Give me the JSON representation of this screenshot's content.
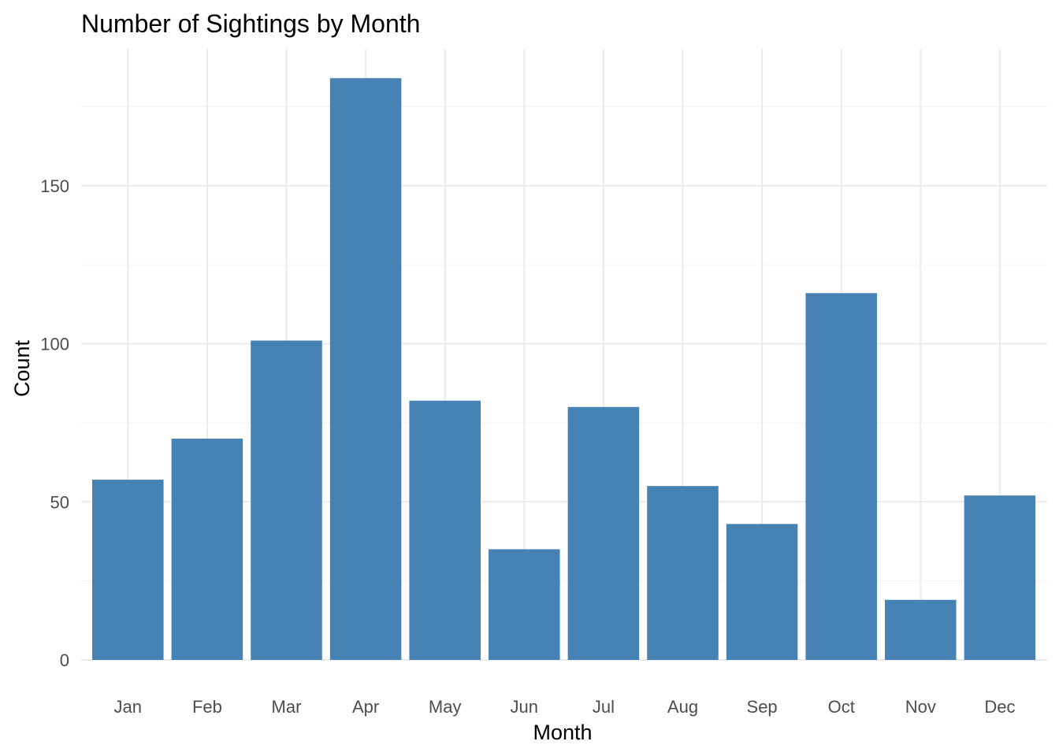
{
  "chart_data": {
    "type": "bar",
    "title": "Number of Sightings by Month",
    "xlabel": "Month",
    "ylabel": "Count",
    "categories": [
      "Jan",
      "Feb",
      "Mar",
      "Apr",
      "May",
      "Jun",
      "Jul",
      "Aug",
      "Sep",
      "Oct",
      "Nov",
      "Dec"
    ],
    "values": [
      57,
      70,
      101,
      184,
      82,
      35,
      80,
      55,
      43,
      116,
      19,
      52
    ],
    "ylim": [
      0,
      193
    ],
    "yticks": [
      0,
      50,
      100,
      150
    ],
    "yticks_minor": [
      25,
      75,
      125,
      175
    ],
    "grid": true,
    "legend": "none",
    "bar_color": "#4682b4"
  }
}
